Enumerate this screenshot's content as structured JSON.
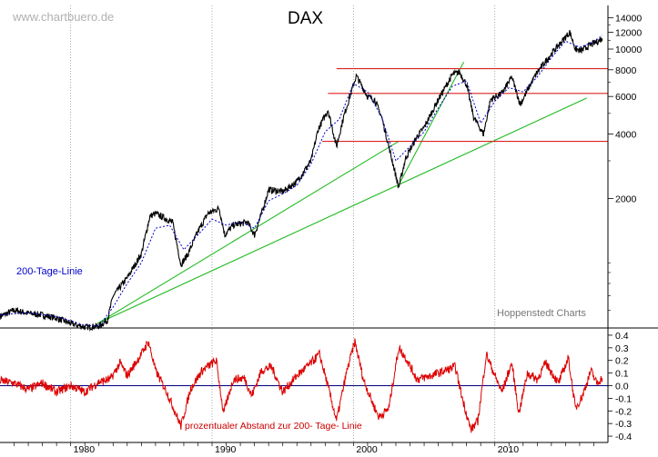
{
  "watermark": "www.chartbuero.de",
  "source_label": "Hoppenstedt Charts",
  "chart_data": [
    {
      "type": "line",
      "title": "DAX",
      "y_scale": "log",
      "ylim": [
        500,
        16000
      ],
      "y_ticks": [
        2000,
        4000,
        6000,
        8000,
        10000,
        12000,
        14000
      ],
      "xlim": [
        1975,
        2018
      ],
      "x_ticks": [
        1980,
        1990,
        2000,
        2010
      ],
      "grid": true,
      "annotation": "200-Tage-Linie",
      "series": [
        {
          "color": "#000000",
          "x": [
            1975,
            1976,
            1977,
            1978,
            1979,
            1980,
            1981,
            1982,
            1982.6,
            1983,
            1984,
            1985,
            1985.6,
            1986,
            1987.2,
            1987.8,
            1988.3,
            1989,
            1989.7,
            1990.5,
            1990.9,
            1991.5,
            1992.5,
            1993,
            1993.5,
            1994,
            1995,
            1996,
            1997,
            1997.5,
            1998.2,
            1998.8,
            1999.3,
            2000.2,
            2001,
            2001.5,
            2002,
            2002.5,
            2003.2,
            2003.7,
            2004.5,
            2005,
            2006,
            2007,
            2007.5,
            2008,
            2008.5,
            2009.2,
            2009.7,
            2010.5,
            2011.2,
            2011.8,
            2012.5,
            2013,
            2014,
            2015.3,
            2015.7,
            2016.1,
            2016.8,
            2017.2,
            2017.6
          ],
          "values": [
            560,
            600,
            580,
            570,
            550,
            520,
            500,
            505,
            540,
            700,
            850,
            1100,
            1650,
            1700,
            1550,
            980,
            1100,
            1400,
            1700,
            1800,
            1350,
            1500,
            1550,
            1350,
            1700,
            2200,
            2150,
            2400,
            3000,
            4200,
            5200,
            3500,
            4800,
            7500,
            6000,
            5800,
            4800,
            3500,
            2250,
            3100,
            3900,
            4300,
            5800,
            7600,
            7800,
            6800,
            4800,
            4000,
            5800,
            6200,
            7400,
            5500,
            6800,
            7800,
            9500,
            12000,
            10000,
            9800,
            10500,
            10800,
            11200
          ]
        },
        {
          "color": "#0000cc",
          "name": "200-Tage-Linie",
          "x": [
            1975,
            1977,
            1979,
            1981,
            1982,
            1983,
            1984,
            1985,
            1986,
            1987,
            1988,
            1989,
            1990,
            1991,
            1992,
            1993,
            1994,
            1995,
            1996,
            1997,
            1998,
            1999,
            2000,
            2001,
            2002,
            2003,
            2004,
            2005,
            2006,
            2007,
            2008,
            2009,
            2010,
            2011,
            2012,
            2013,
            2014,
            2015,
            2016,
            2017,
            2017.6
          ],
          "values": [
            570,
            585,
            560,
            510,
            505,
            620,
            800,
            1000,
            1450,
            1500,
            1150,
            1350,
            1600,
            1500,
            1550,
            1450,
            1950,
            2100,
            2300,
            2900,
            4100,
            4700,
            6900,
            6300,
            4800,
            3000,
            3500,
            4100,
            5300,
            6700,
            7100,
            4500,
            5700,
            6600,
            6300,
            7400,
            9100,
            10900,
            10200,
            10800,
            11600
          ]
        }
      ]
    },
    {
      "type": "line",
      "annotation": "prozentualer Abstand zur 200- Tage- Linie",
      "ylim": [
        -0.45,
        0.45
      ],
      "y_ticks": [
        -0.4,
        -0.3,
        -0.2,
        -0.1,
        0.0,
        0.1,
        0.2,
        0.3,
        0.4
      ],
      "xlim": [
        1975,
        2018
      ],
      "x_ticks": [
        1980,
        1990,
        2000,
        2010
      ],
      "series": [
        {
          "color": "#dd0000",
          "x": [
            1975,
            1976,
            1977,
            1978,
            1979,
            1980,
            1981,
            1982,
            1982.8,
            1983.5,
            1984,
            1985,
            1985.5,
            1986,
            1986.8,
            1987.8,
            1988.5,
            1989.3,
            1990.3,
            1990.8,
            1991.5,
            1992.3,
            1992.8,
            1993.5,
            1994.2,
            1995,
            1996,
            1997,
            1997.6,
            1998.3,
            1998.8,
            1999.5,
            2000.1,
            2000.7,
            2001.4,
            2001.8,
            2002.5,
            2003.2,
            2003.7,
            2004.5,
            2005.5,
            2006.5,
            2007.2,
            2007.7,
            2008.3,
            2008.8,
            2009.4,
            2010,
            2010.5,
            2011.2,
            2011.7,
            2012.3,
            2013,
            2013.6,
            2014.5,
            2015.2,
            2015.7,
            2016.2,
            2016.8,
            2017.2,
            2017.6
          ],
          "values": [
            0.04,
            0.02,
            -0.03,
            0.02,
            -0.05,
            0.0,
            -0.05,
            0.03,
            0.05,
            0.18,
            0.08,
            0.25,
            0.35,
            0.12,
            -0.05,
            -0.32,
            -0.02,
            0.12,
            0.2,
            -0.22,
            0.05,
            0.06,
            -0.08,
            0.12,
            0.15,
            -0.05,
            0.08,
            0.18,
            0.25,
            -0.05,
            -0.28,
            0.1,
            0.35,
            0.05,
            -0.15,
            -0.25,
            -0.18,
            0.3,
            0.22,
            0.05,
            0.08,
            0.12,
            0.15,
            -0.1,
            -0.35,
            -0.28,
            0.25,
            0.08,
            -0.05,
            0.18,
            -0.22,
            0.1,
            0.05,
            0.18,
            0.02,
            0.22,
            -0.18,
            -0.08,
            0.12,
            0.02,
            0.06
          ]
        }
      ]
    }
  ]
}
